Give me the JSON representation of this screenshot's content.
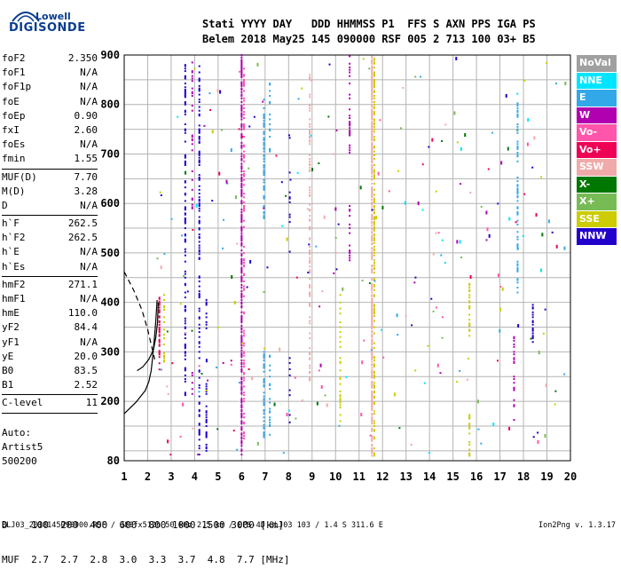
{
  "logo": {
    "line1": "Lowell",
    "line2": "DIGISONDE"
  },
  "header": {
    "line1": "Stati YYYY DAY   DDD HHMMSS P1  FFS S AXN PPS IGA PS",
    "line2": "Belem 2018 May25 145 090000 RSF 005 2 713 100 03+ B5"
  },
  "params": [
    {
      "name": "foF2",
      "value": "2.350"
    },
    {
      "name": "foF1",
      "value": "N/A"
    },
    {
      "name": "foF1p",
      "value": "N/A"
    },
    {
      "name": "foE",
      "value": "N/A"
    },
    {
      "name": "foEp",
      "value": "0.90"
    },
    {
      "name": "fxI",
      "value": "2.60"
    },
    {
      "name": "foEs",
      "value": "N/A"
    },
    {
      "name": "fmin",
      "value": "1.55"
    },
    {
      "sep": true
    },
    {
      "name": "MUF(D)",
      "value": "7.70"
    },
    {
      "name": "M(D)",
      "value": "3.28"
    },
    {
      "name": "D",
      "value": "N/A"
    },
    {
      "sep": true
    },
    {
      "name": "h`F",
      "value": "262.5"
    },
    {
      "name": "h`F2",
      "value": "262.5"
    },
    {
      "name": "h`E",
      "value": "N/A"
    },
    {
      "name": "h`Es",
      "value": "N/A"
    },
    {
      "sep": true
    },
    {
      "name": "hmF2",
      "value": "271.1"
    },
    {
      "name": "hmF1",
      "value": "N/A"
    },
    {
      "name": "hmE",
      "value": "110.0"
    },
    {
      "name": "yF2",
      "value": "84.4"
    },
    {
      "name": "yF1",
      "value": "N/A"
    },
    {
      "name": "yE",
      "value": "20.0"
    },
    {
      "name": "B0",
      "value": "83.5"
    },
    {
      "name": "B1",
      "value": "2.52"
    },
    {
      "sep": true
    },
    {
      "name": "C-level",
      "value": "11"
    },
    {
      "sep": true
    }
  ],
  "auto": {
    "line1": "Auto:",
    "line2": "Artist5",
    "line3": "500200"
  },
  "dmuf": {
    "line1": "D    100  200  400  600  800 1000 1500 3000 [km]",
    "line2": "MUF  2.7  2.7  2.8  3.0  3.3  3.7  4.8  7.7 [MHz]"
  },
  "footer": "BLJ03_2018145090000.RSF / 380fx512h 50 kHz 2.5 km / DPS-4D BLJ03 103 / 1.4 S 311.6 E",
  "version": "Ion2Png v. 1.3.17",
  "legend": [
    {
      "label": "NoVal",
      "color": "#a0a0a0"
    },
    {
      "label": "NNE",
      "color": "#00e5ff"
    },
    {
      "label": "E",
      "color": "#33a8e8"
    },
    {
      "label": "W",
      "color": "#b000b0"
    },
    {
      "label": "Vo-",
      "color": "#ff55aa"
    },
    {
      "label": "Vo+",
      "color": "#ee0055"
    },
    {
      "label": "SSW",
      "color": "#f0aaaa"
    },
    {
      "label": "X-",
      "color": "#007700"
    },
    {
      "label": "X+",
      "color": "#77bb55"
    },
    {
      "label": "SSE",
      "color": "#cccc00"
    },
    {
      "label": "NNW",
      "color": "#2200cc"
    }
  ],
  "chart_data": {
    "type": "scatter",
    "xlim": [
      1,
      20
    ],
    "ylim": [
      80,
      900
    ],
    "x_ticks": [
      1,
      2,
      3,
      4,
      5,
      6,
      7,
      8,
      9,
      10,
      11,
      12,
      13,
      14,
      15,
      16,
      17,
      18,
      19,
      20
    ],
    "y_ticks": [
      80,
      200,
      300,
      400,
      500,
      600,
      700,
      800,
      900
    ],
    "grid": true,
    "traces": [
      {
        "style": "solid",
        "points": [
          [
            1.0,
            175
          ],
          [
            1.5,
            198
          ],
          [
            1.9,
            222
          ],
          [
            2.05,
            240
          ],
          [
            2.15,
            262
          ],
          [
            2.2,
            285
          ],
          [
            2.25,
            310
          ],
          [
            2.3,
            335
          ],
          [
            2.35,
            365
          ],
          [
            2.4,
            405
          ]
        ]
      },
      {
        "style": "dashed",
        "points": [
          [
            1.0,
            462
          ],
          [
            1.4,
            425
          ],
          [
            1.75,
            385
          ],
          [
            2.0,
            345
          ],
          [
            2.15,
            315
          ],
          [
            2.3,
            285
          ]
        ]
      },
      {
        "style": "solid",
        "points": [
          [
            1.55,
            262
          ],
          [
            1.8,
            270
          ],
          [
            2.05,
            285
          ],
          [
            2.25,
            305
          ],
          [
            2.35,
            330
          ],
          [
            2.42,
            360
          ],
          [
            2.45,
            400
          ]
        ]
      }
    ],
    "columns": [
      {
        "f": 2.5,
        "ranges": [
          [
            262,
            410
          ]
        ],
        "color": "#ee0055",
        "density": 0.6
      },
      {
        "f": 2.7,
        "ranges": [
          [
            280,
            420
          ]
        ],
        "color": "#cccc00",
        "density": 0.3
      },
      {
        "f": 3.6,
        "ranges": [
          [
            200,
            880
          ]
        ],
        "color": "#2200cc",
        "density": 0.35
      },
      {
        "f": 3.9,
        "ranges": [
          [
            580,
            890
          ],
          [
            200,
            260
          ]
        ],
        "color": "#b000b0",
        "density": 0.2
      },
      {
        "f": 4.2,
        "ranges": [
          [
            90,
            880
          ]
        ],
        "color": "#2200cc",
        "density": 0.35
      },
      {
        "f": 4.5,
        "ranges": [
          [
            90,
            250
          ],
          [
            330,
            420
          ]
        ],
        "color": "#2200cc",
        "density": 0.3
      },
      {
        "f": 6.0,
        "ranges": [
          [
            90,
            900
          ]
        ],
        "color": "#b000b0",
        "density": 0.6
      },
      {
        "f": 6.1,
        "ranges": [
          [
            120,
            880
          ]
        ],
        "color": "#ff55aa",
        "density": 0.3
      },
      {
        "f": 6.95,
        "ranges": [
          [
            560,
            810
          ],
          [
            120,
            300
          ]
        ],
        "color": "#33a8e8",
        "density": 0.5
      },
      {
        "f": 7.2,
        "ranges": [
          [
            130,
            300
          ],
          [
            700,
            860
          ]
        ],
        "color": "#33a8e8",
        "density": 0.3
      },
      {
        "f": 8.05,
        "ranges": [
          [
            500,
            740
          ],
          [
            150,
            300
          ]
        ],
        "color": "#2200cc",
        "density": 0.1
      },
      {
        "f": 8.9,
        "ranges": [
          [
            220,
            860
          ]
        ],
        "color": "#f0aaaa",
        "density": 0.35
      },
      {
        "f": 10.2,
        "ranges": [
          [
            150,
            420
          ]
        ],
        "color": "#cccc00",
        "density": 0.25
      },
      {
        "f": 10.6,
        "ranges": [
          [
            470,
            600
          ],
          [
            700,
            900
          ]
        ],
        "color": "#b000b0",
        "density": 0.35
      },
      {
        "f": 11.55,
        "ranges": [
          [
            90,
            900
          ]
        ],
        "color": "#f0aaaa",
        "density": 0.8
      },
      {
        "f": 11.65,
        "ranges": [
          [
            90,
            900
          ]
        ],
        "color": "#cccc00",
        "density": 0.4
      },
      {
        "f": 15.7,
        "ranges": [
          [
            90,
            180
          ],
          [
            330,
            440
          ]
        ],
        "color": "#cccc00",
        "density": 0.4
      },
      {
        "f": 17.6,
        "ranges": [
          [
            160,
            330
          ]
        ],
        "color": "#b000b0",
        "density": 0.3
      },
      {
        "f": 17.75,
        "ranges": [
          [
            420,
            820
          ]
        ],
        "color": "#33a8e8",
        "density": 0.4
      },
      {
        "f": 18.4,
        "ranges": [
          [
            320,
            395
          ]
        ],
        "color": "#2200cc",
        "density": 0.5
      }
    ],
    "scatter_count": 260,
    "scatter_colors": [
      "#2200cc",
      "#b000b0",
      "#33a8e8",
      "#cccc00",
      "#ee0055",
      "#ff55aa",
      "#007700",
      "#00e5ff",
      "#77bb55",
      "#f0aaaa"
    ]
  }
}
